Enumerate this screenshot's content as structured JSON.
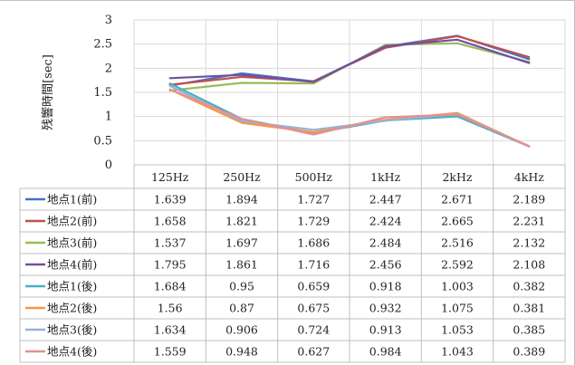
{
  "chart_data": {
    "type": "line",
    "title": "",
    "ylabel": "残響時間[sec]",
    "xlabel": "",
    "ylim": [
      0,
      3
    ],
    "yticks": [
      "0",
      "0.5",
      "1",
      "1.5",
      "2",
      "2.5",
      "3"
    ],
    "categories": [
      "125Hz",
      "250Hz",
      "500Hz",
      "1kHz",
      "2kHz",
      "4kHz"
    ],
    "grid": true,
    "legend": "data-table",
    "series": [
      {
        "name": "地点1(前)",
        "color": "#4472c4",
        "values": [
          1.639,
          1.894,
          1.727,
          2.447,
          2.671,
          2.189
        ],
        "labels": [
          "1.639",
          "1.894",
          "1.727",
          "2.447",
          "2.671",
          "2.189"
        ]
      },
      {
        "name": "地点2(前)",
        "color": "#c0504d",
        "values": [
          1.658,
          1.821,
          1.729,
          2.424,
          2.665,
          2.231
        ],
        "labels": [
          "1.658",
          "1.821",
          "1.729",
          "2.424",
          "2.665",
          "2.231"
        ]
      },
      {
        "name": "地点3(前)",
        "color": "#9bbb59",
        "values": [
          1.537,
          1.697,
          1.686,
          2.484,
          2.516,
          2.132
        ],
        "labels": [
          "1.537",
          "1.697",
          "1.686",
          "2.484",
          "2.516",
          "2.132"
        ]
      },
      {
        "name": "地点4(前)",
        "color": "#7050a0",
        "values": [
          1.795,
          1.861,
          1.716,
          2.456,
          2.592,
          2.108
        ],
        "labels": [
          "1.795",
          "1.861",
          "1.716",
          "2.456",
          "2.592",
          "2.108"
        ]
      },
      {
        "name": "地点1(後)",
        "color": "#4bacc6",
        "values": [
          1.684,
          0.95,
          0.659,
          0.918,
          1.003,
          0.382
        ],
        "labels": [
          "1.684",
          "0.95",
          "0.659",
          "0.918",
          "1.003",
          "0.382"
        ]
      },
      {
        "name": "地点2(後)",
        "color": "#f79646",
        "values": [
          1.56,
          0.87,
          0.675,
          0.932,
          1.075,
          0.381
        ],
        "labels": [
          "1.56",
          "0.87",
          "0.675",
          "0.932",
          "1.075",
          "0.381"
        ]
      },
      {
        "name": "地点3(後)",
        "color": "#95b3d7",
        "values": [
          1.634,
          0.906,
          0.724,
          0.913,
          1.053,
          0.385
        ],
        "labels": [
          "1.634",
          "0.906",
          "0.724",
          "0.913",
          "1.053",
          "0.385"
        ]
      },
      {
        "name": "地点4(後)",
        "color": "#e6908f",
        "values": [
          1.559,
          0.948,
          0.627,
          0.984,
          1.043,
          0.389
        ],
        "labels": [
          "1.559",
          "0.948",
          "0.627",
          "0.984",
          "1.043",
          "0.389"
        ]
      }
    ]
  }
}
